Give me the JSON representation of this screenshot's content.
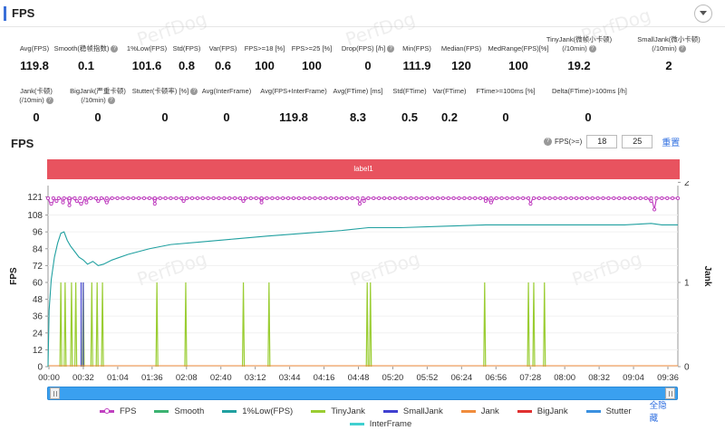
{
  "header": {
    "title": "FPS"
  },
  "watermark": "PerfDog",
  "stats_row1": [
    {
      "label": "Avg(FPS)",
      "value": "119.8",
      "help": false
    },
    {
      "label": "Smooth(稳帧指数)",
      "value": "0.1",
      "help": true
    },
    {
      "label": "1%Low(FPS)",
      "value": "101.6",
      "help": false
    },
    {
      "label": "Std(FPS)",
      "value": "0.8",
      "help": false
    },
    {
      "label": "Var(FPS)",
      "value": "0.6",
      "help": false
    },
    {
      "label": "FPS>=18 [%]",
      "value": "100",
      "help": false
    },
    {
      "label": "FPS>=25 [%]",
      "value": "100",
      "help": false
    },
    {
      "label": "Drop(FPS) [/h]",
      "value": "0",
      "help": true
    },
    {
      "label": "Min(FPS)",
      "value": "111.9",
      "help": false
    },
    {
      "label": "Median(FPS)",
      "value": "120",
      "help": false
    },
    {
      "label": "MedRange(FPS)[%]",
      "value": "100",
      "help": false
    },
    {
      "label": "TinyJank(微帧小卡顿)",
      "label2": "(/10min)",
      "value": "19.2",
      "help": true
    },
    {
      "label": "SmallJank(微小卡顿)",
      "label2": "(/10min)",
      "value": "2",
      "help": true
    }
  ],
  "stats_row2": [
    {
      "label": "Jank(卡顿)",
      "label2": "(/10min)",
      "value": "0",
      "help": true
    },
    {
      "label": "BigJank(严重卡顿)",
      "label2": "(/10min)",
      "value": "0",
      "help": true
    },
    {
      "label": "Stutter(卡顿率) [%]",
      "value": "0",
      "help": true
    },
    {
      "label": "Avg(InterFrame)",
      "value": "0",
      "help": false
    },
    {
      "label": "Avg(FPS+InterFrame)",
      "value": "119.8",
      "help": false
    },
    {
      "label": "Avg(FTime) [ms]",
      "value": "8.3",
      "help": false
    },
    {
      "label": "Std(FTime)",
      "value": "0.5",
      "help": false
    },
    {
      "label": "Var(FTime)",
      "value": "0.2",
      "help": false
    },
    {
      "label": "FTime>=100ms [%]",
      "value": "0",
      "help": false
    },
    {
      "label": "Delta(FTime)>100ms [/h]",
      "value": "0",
      "help": false
    }
  ],
  "fps_section": {
    "title": "FPS",
    "filter_label": "FPS(>=)",
    "filter_value_1": "18",
    "filter_value_2": "25",
    "reset_label": "重置",
    "band_label": "label1"
  },
  "legend": {
    "items": [
      {
        "name": "FPS",
        "color": "#c040c0",
        "marker": true
      },
      {
        "name": "Smooth",
        "color": "#3cb371",
        "marker": false
      },
      {
        "name": "1%Low(FPS)",
        "color": "#20a0a0",
        "marker": false
      },
      {
        "name": "TinyJank",
        "color": "#9acd32",
        "marker": false
      },
      {
        "name": "SmallJank",
        "color": "#4040d0",
        "marker": false
      },
      {
        "name": "Jank",
        "color": "#f08c3c",
        "marker": false
      },
      {
        "name": "BigJank",
        "color": "#e03030",
        "marker": false
      },
      {
        "name": "Stutter",
        "color": "#3a90e0",
        "marker": false
      }
    ],
    "item_interframe": {
      "name": "InterFrame",
      "color": "#40d0d0",
      "marker": false
    },
    "hide_all_label": "全隐藏"
  },
  "chart_data": {
    "type": "line",
    "ylabel_left": "FPS",
    "ylabel_right": "Jank",
    "y_left_ticks": [
      0,
      12,
      24,
      36,
      48,
      60,
      72,
      84,
      96,
      108,
      121
    ],
    "y_left_range": [
      0,
      129
    ],
    "y_right_ticks": [
      0,
      1,
      2
    ],
    "x_range_seconds": [
      0,
      590
    ],
    "x_tick_labels": [
      "00:00",
      "00:32",
      "01:04",
      "01:36",
      "02:08",
      "02:40",
      "03:12",
      "03:44",
      "04:16",
      "04:48",
      "05:20",
      "05:52",
      "06:24",
      "06:56",
      "07:28",
      "08:00",
      "08:32",
      "09:04",
      "09:36"
    ],
    "series": [
      {
        "name": "FPS",
        "baseline": 120,
        "dips": [
          {
            "t": 3,
            "v": 116
          },
          {
            "t": 8,
            "v": 118
          },
          {
            "t": 14,
            "v": 117
          },
          {
            "t": 20,
            "v": 115
          },
          {
            "t": 27,
            "v": 118
          },
          {
            "t": 31,
            "v": 116
          },
          {
            "t": 36,
            "v": 117
          },
          {
            "t": 47,
            "v": 118
          },
          {
            "t": 55,
            "v": 117
          },
          {
            "t": 100,
            "v": 116
          },
          {
            "t": 127,
            "v": 118
          },
          {
            "t": 183,
            "v": 118
          },
          {
            "t": 200,
            "v": 117
          },
          {
            "t": 292,
            "v": 116
          },
          {
            "t": 296,
            "v": 118
          },
          {
            "t": 410,
            "v": 118
          },
          {
            "t": 415,
            "v": 117
          },
          {
            "t": 452,
            "v": 116
          },
          {
            "t": 565,
            "v": 118
          },
          {
            "t": 568,
            "v": 112
          }
        ]
      },
      {
        "name": "1%Low(FPS)",
        "points": [
          [
            0,
            0
          ],
          [
            1,
            40
          ],
          [
            3,
            62
          ],
          [
            6,
            78
          ],
          [
            9,
            88
          ],
          [
            12,
            95
          ],
          [
            15,
            96
          ],
          [
            18,
            90
          ],
          [
            21,
            86
          ],
          [
            25,
            82
          ],
          [
            29,
            78
          ],
          [
            33,
            76
          ],
          [
            37,
            73
          ],
          [
            42,
            75
          ],
          [
            47,
            72
          ],
          [
            52,
            73
          ],
          [
            60,
            76
          ],
          [
            75,
            80
          ],
          [
            95,
            84
          ],
          [
            115,
            87
          ],
          [
            145,
            89
          ],
          [
            175,
            91
          ],
          [
            205,
            93
          ],
          [
            240,
            95
          ],
          [
            275,
            97
          ],
          [
            300,
            99
          ],
          [
            330,
            99
          ],
          [
            370,
            100
          ],
          [
            410,
            101
          ],
          [
            460,
            101
          ],
          [
            500,
            101
          ],
          [
            540,
            101
          ],
          [
            565,
            102
          ],
          [
            575,
            101
          ],
          [
            590,
            101
          ]
        ]
      },
      {
        "name": "TinyJank",
        "spikes_seconds": [
          12,
          16,
          22,
          26,
          33,
          41,
          46,
          51,
          102,
          129,
          183,
          207,
          299,
          302,
          409,
          450,
          455,
          465
        ]
      },
      {
        "name": "SmallJank",
        "spikes_seconds": [
          31,
          33
        ]
      }
    ]
  }
}
